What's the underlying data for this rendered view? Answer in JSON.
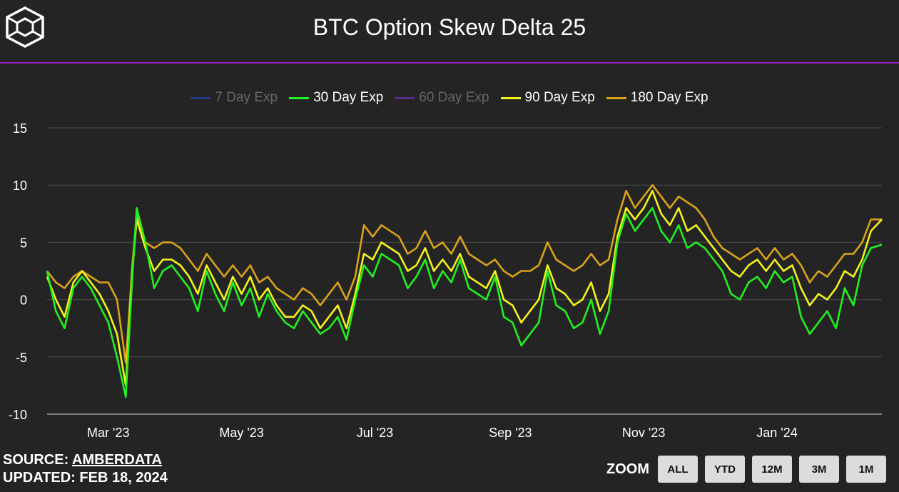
{
  "header": {
    "title": "BTC Option Skew Delta 25",
    "logo_icon": "cube-logo-icon"
  },
  "legend": [
    {
      "label": "7 Day Exp",
      "color": "#22398a",
      "active": false
    },
    {
      "label": "30 Day Exp",
      "color": "#22f022",
      "active": true
    },
    {
      "label": "60 Day Exp",
      "color": "#5a2c8c",
      "active": false
    },
    {
      "label": "90 Day Exp",
      "color": "#f2f21e",
      "active": true
    },
    {
      "label": "180 Day Exp",
      "color": "#d9a21c",
      "active": true
    }
  ],
  "footer": {
    "source_prefix": "SOURCE: ",
    "source_name": "AMBERDATA",
    "updated": "UPDATED: FEB 18, 2024"
  },
  "zoom": {
    "label": "ZOOM",
    "buttons": [
      "ALL",
      "YTD",
      "12M",
      "3M",
      "1M"
    ]
  },
  "chart_data": {
    "type": "line",
    "title": "BTC Option Skew Delta 25",
    "ylim": [
      -10,
      15
    ],
    "yticks": [
      -10,
      -5,
      0,
      5,
      10,
      15
    ],
    "xlim": [
      "2023-02-01",
      "2024-02-18"
    ],
    "xticks": [
      {
        "date": "2023-03-01",
        "label": "Mar '23"
      },
      {
        "date": "2023-05-01",
        "label": "May '23"
      },
      {
        "date": "2023-07-01",
        "label": "Jul '23"
      },
      {
        "date": "2023-09-01",
        "label": "Sep '23"
      },
      {
        "date": "2023-11-01",
        "label": "Nov '23"
      },
      {
        "date": "2024-01-01",
        "label": "Jan '24"
      }
    ],
    "grid": true,
    "legend_position": "top-center",
    "x": [
      "2023-02-01",
      "2023-02-05",
      "2023-02-09",
      "2023-02-13",
      "2023-02-17",
      "2023-02-21",
      "2023-02-25",
      "2023-03-01",
      "2023-03-05",
      "2023-03-09",
      "2023-03-12",
      "2023-03-14",
      "2023-03-18",
      "2023-03-22",
      "2023-03-26",
      "2023-03-30",
      "2023-04-03",
      "2023-04-07",
      "2023-04-11",
      "2023-04-15",
      "2023-04-19",
      "2023-04-23",
      "2023-04-27",
      "2023-05-01",
      "2023-05-05",
      "2023-05-09",
      "2023-05-13",
      "2023-05-17",
      "2023-05-21",
      "2023-05-25",
      "2023-05-29",
      "2023-06-02",
      "2023-06-06",
      "2023-06-10",
      "2023-06-14",
      "2023-06-18",
      "2023-06-22",
      "2023-06-26",
      "2023-06-30",
      "2023-07-04",
      "2023-07-08",
      "2023-07-12",
      "2023-07-16",
      "2023-07-20",
      "2023-07-24",
      "2023-07-28",
      "2023-08-01",
      "2023-08-05",
      "2023-08-09",
      "2023-08-13",
      "2023-08-17",
      "2023-08-21",
      "2023-08-25",
      "2023-08-29",
      "2023-09-02",
      "2023-09-06",
      "2023-09-10",
      "2023-09-14",
      "2023-09-18",
      "2023-09-22",
      "2023-09-26",
      "2023-09-30",
      "2023-10-04",
      "2023-10-08",
      "2023-10-12",
      "2023-10-16",
      "2023-10-20",
      "2023-10-24",
      "2023-10-28",
      "2023-11-01",
      "2023-11-05",
      "2023-11-09",
      "2023-11-13",
      "2023-11-17",
      "2023-11-21",
      "2023-11-25",
      "2023-11-29",
      "2023-12-03",
      "2023-12-07",
      "2023-12-11",
      "2023-12-15",
      "2023-12-19",
      "2023-12-23",
      "2023-12-27",
      "2023-12-31",
      "2024-01-04",
      "2024-01-08",
      "2024-01-12",
      "2024-01-16",
      "2024-01-20",
      "2024-01-24",
      "2024-01-28",
      "2024-02-01",
      "2024-02-05",
      "2024-02-09",
      "2024-02-13",
      "2024-02-18"
    ],
    "series": [
      {
        "name": "30 Day Exp",
        "color": "#22f022",
        "values": [
          2.5,
          -1.0,
          -2.5,
          1.0,
          2.0,
          1.0,
          -0.5,
          -2.0,
          -5.0,
          -8.5,
          2.0,
          8.0,
          5.0,
          1.0,
          2.5,
          3.0,
          2.0,
          1.0,
          -1.0,
          2.5,
          0.5,
          -1.0,
          1.5,
          -0.5,
          1.0,
          -1.5,
          0.5,
          -1.0,
          -2.0,
          -2.5,
          -1.0,
          -2.0,
          -3.0,
          -2.5,
          -1.5,
          -3.5,
          0.0,
          3.0,
          2.0,
          4.0,
          3.5,
          3.0,
          1.0,
          2.0,
          3.5,
          1.0,
          2.5,
          1.5,
          3.5,
          1.0,
          0.5,
          0.0,
          2.0,
          -1.5,
          -2.0,
          -4.0,
          -3.0,
          -2.0,
          2.5,
          -0.5,
          -1.0,
          -2.5,
          -2.0,
          0.0,
          -3.0,
          -1.0,
          5.0,
          7.5,
          6.0,
          7.0,
          8.0,
          6.0,
          5.0,
          6.5,
          4.5,
          5.0,
          4.5,
          3.5,
          2.5,
          0.5,
          0.0,
          1.5,
          2.0,
          1.0,
          2.5,
          1.5,
          2.0,
          -1.5,
          -3.0,
          -2.0,
          -1.0,
          -2.5,
          1.0,
          -0.5,
          3.0,
          4.5,
          4.8
        ]
      },
      {
        "name": "90 Day Exp",
        "color": "#f2f21e",
        "values": [
          2.0,
          0.0,
          -1.5,
          1.5,
          2.5,
          1.5,
          0.5,
          -1.0,
          -3.0,
          -7.5,
          2.5,
          7.0,
          4.5,
          2.5,
          3.5,
          3.5,
          3.0,
          2.0,
          0.5,
          3.0,
          1.5,
          0.0,
          2.0,
          0.5,
          2.0,
          0.0,
          1.0,
          -0.5,
          -1.5,
          -1.5,
          -0.5,
          -1.0,
          -2.5,
          -1.5,
          -0.5,
          -2.5,
          0.5,
          4.0,
          3.5,
          5.0,
          4.5,
          4.0,
          2.5,
          3.0,
          4.5,
          2.5,
          3.5,
          2.5,
          4.0,
          2.0,
          1.5,
          1.0,
          2.5,
          0.0,
          -0.5,
          -2.0,
          -1.0,
          0.0,
          3.0,
          1.0,
          0.5,
          -0.5,
          0.0,
          1.5,
          -1.0,
          0.5,
          5.5,
          8.0,
          7.0,
          8.0,
          9.5,
          7.5,
          6.5,
          8.0,
          6.0,
          6.5,
          5.5,
          4.5,
          3.5,
          2.5,
          2.0,
          3.0,
          3.5,
          2.5,
          3.5,
          2.5,
          3.0,
          1.0,
          -0.5,
          0.5,
          0.0,
          1.0,
          2.5,
          2.0,
          3.5,
          6.0,
          7.0
        ]
      },
      {
        "name": "180 Day Exp",
        "color": "#d9a21c",
        "values": [
          2.5,
          1.5,
          1.0,
          2.0,
          2.5,
          2.0,
          1.5,
          1.5,
          0.0,
          -5.5,
          3.0,
          7.5,
          5.0,
          4.5,
          5.0,
          5.0,
          4.5,
          3.5,
          2.5,
          4.0,
          3.0,
          2.0,
          3.0,
          2.0,
          3.0,
          1.5,
          2.0,
          1.0,
          0.5,
          0.0,
          1.0,
          0.5,
          -0.5,
          0.5,
          1.5,
          0.0,
          2.0,
          6.5,
          5.5,
          6.5,
          6.0,
          5.5,
          4.0,
          4.5,
          6.0,
          4.5,
          5.0,
          4.0,
          5.5,
          4.0,
          3.5,
          3.0,
          3.5,
          2.5,
          2.0,
          2.5,
          2.5,
          3.0,
          5.0,
          3.5,
          3.0,
          2.5,
          3.0,
          4.0,
          3.0,
          3.5,
          7.0,
          9.5,
          8.0,
          9.0,
          10.0,
          9.0,
          8.0,
          9.0,
          8.5,
          8.0,
          7.0,
          5.5,
          4.5,
          4.0,
          3.5,
          4.0,
          4.5,
          3.5,
          4.5,
          3.5,
          4.0,
          3.0,
          1.5,
          2.5,
          2.0,
          3.0,
          4.0,
          4.0,
          5.0,
          7.0,
          7.0
        ]
      }
    ]
  }
}
